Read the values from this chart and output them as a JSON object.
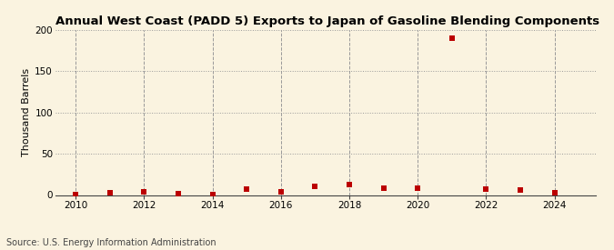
{
  "title": "Annual West Coast (PADD 5) Exports to Japan of Gasoline Blending Components",
  "ylabel": "Thousand Barrels",
  "source": "Source: U.S. Energy Information Administration",
  "years": [
    2010,
    2011,
    2012,
    2013,
    2014,
    2015,
    2016,
    2017,
    2018,
    2019,
    2020,
    2021,
    2022,
    2023,
    2024
  ],
  "values": [
    1.0,
    3.0,
    3.5,
    2.0,
    0.5,
    7.0,
    4.0,
    11.0,
    13.0,
    8.0,
    8.0,
    190.0,
    7.0,
    6.0,
    3.0
  ],
  "marker_color": "#bb0000",
  "marker_style": "s",
  "marker_size": 16,
  "background_color": "#faf3e0",
  "grid_color": "#999999",
  "ylim": [
    0,
    200
  ],
  "yticks": [
    0,
    50,
    100,
    150,
    200
  ],
  "xlim": [
    2009.4,
    2025.2
  ],
  "xticks": [
    2010,
    2012,
    2014,
    2016,
    2018,
    2020,
    2022,
    2024
  ],
  "title_fontsize": 9.5,
  "ylabel_fontsize": 8,
  "tick_fontsize": 7.5,
  "source_fontsize": 7
}
